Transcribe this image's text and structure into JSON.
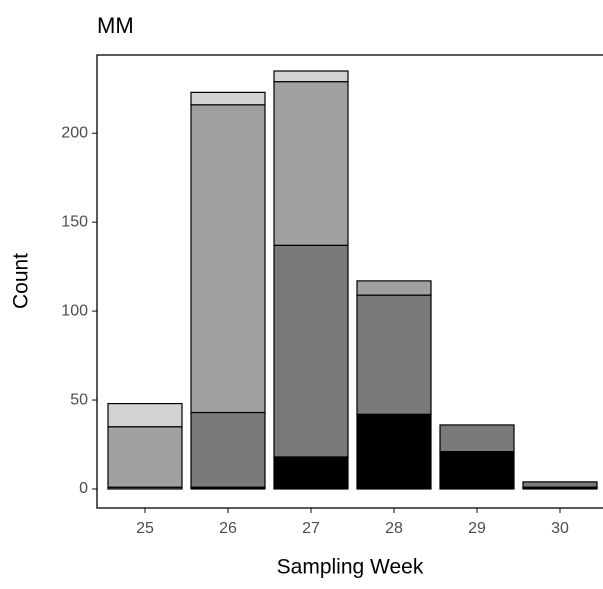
{
  "chart_data": {
    "type": "stacked_bar",
    "title": "MM",
    "x_label": "Sampling Week",
    "y_label": "Count",
    "categories": [
      "25",
      "26",
      "27",
      "28",
      "29",
      "30"
    ],
    "series": [
      {
        "color": "#000000",
        "values": [
          0,
          1,
          18,
          42,
          21,
          1
        ]
      },
      {
        "color": "#7a7a7a",
        "values": [
          1,
          42,
          119,
          67,
          15,
          3
        ]
      },
      {
        "color": "#a0a0a0",
        "values": [
          34,
          173,
          92,
          8,
          0,
          0
        ]
      },
      {
        "color": "#d3d3d3",
        "values": [
          13,
          7,
          6,
          0,
          0,
          0
        ]
      }
    ],
    "ylim": [
      -10.7,
      244
    ],
    "yticks": [
      0,
      50,
      100,
      150,
      200
    ]
  }
}
